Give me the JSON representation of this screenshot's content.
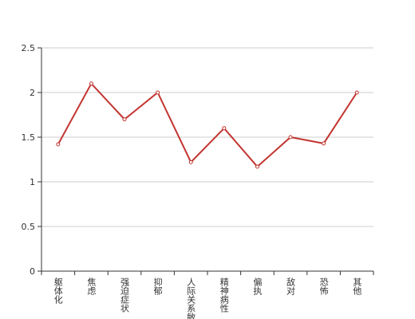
{
  "chart_data": {
    "type": "line",
    "categories": [
      "躯体化",
      "焦虑",
      "强迫症状",
      "抑郁",
      "人际关系敏感",
      "精神病性",
      "偏执",
      "敌对",
      "恐怖",
      "其他"
    ],
    "series": [
      {
        "color": "#c23531",
        "values": [
          1.42,
          2.1,
          1.7,
          2.0,
          1.22,
          1.6,
          1.17,
          1.5,
          1.43,
          2.0
        ]
      }
    ],
    "ylim": [
      0,
      2.5
    ],
    "yticks": [
      0,
      0.5,
      1,
      1.5,
      2,
      2.5
    ],
    "grid": true
  }
}
